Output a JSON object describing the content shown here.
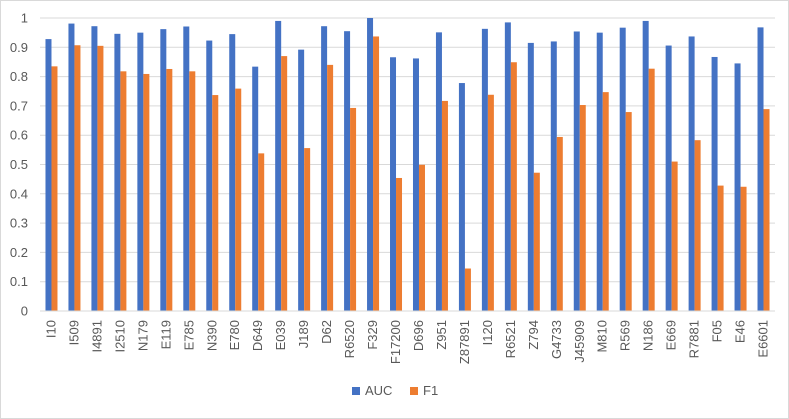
{
  "chart_data": {
    "type": "bar",
    "categories": [
      "I10",
      "I509",
      "I4891",
      "I2510",
      "N179",
      "E119",
      "E785",
      "N390",
      "E780",
      "D649",
      "E039",
      "J189",
      "D62",
      "R6520",
      "F329",
      "F17200",
      "D696",
      "Z951",
      "Z87891",
      "I120",
      "R6521",
      "Z794",
      "G4733",
      "J45909",
      "M810",
      "R569",
      "N186",
      "E669",
      "R7881",
      "F05",
      "E46",
      "E6601"
    ],
    "series": [
      {
        "name": "AUC",
        "color": "#4472c4",
        "values": [
          0.928,
          0.981,
          0.972,
          0.946,
          0.95,
          0.962,
          0.971,
          0.923,
          0.945,
          0.834,
          0.99,
          0.892,
          0.972,
          0.955,
          1.0,
          0.866,
          0.862,
          0.951,
          0.778,
          0.963,
          0.985,
          0.915,
          0.92,
          0.954,
          0.95,
          0.967,
          0.99,
          0.906,
          0.937,
          0.867,
          0.845,
          0.968
        ]
      },
      {
        "name": "F1",
        "color": "#ed7d31",
        "values": [
          0.835,
          0.907,
          0.905,
          0.818,
          0.809,
          0.826,
          0.818,
          0.737,
          0.759,
          0.538,
          0.87,
          0.556,
          0.84,
          0.693,
          0.937,
          0.454,
          0.499,
          0.717,
          0.145,
          0.738,
          0.849,
          0.472,
          0.594,
          0.703,
          0.747,
          0.679,
          0.827,
          0.51,
          0.583,
          0.428,
          0.424,
          0.689
        ]
      }
    ],
    "ylim": [
      0,
      1
    ],
    "yticks": [
      "0",
      "0.1",
      "0.2",
      "0.3",
      "0.4",
      "0.5",
      "0.6",
      "0.7",
      "0.8",
      "0.9",
      "1"
    ],
    "grid": true,
    "legend": "bottom"
  }
}
